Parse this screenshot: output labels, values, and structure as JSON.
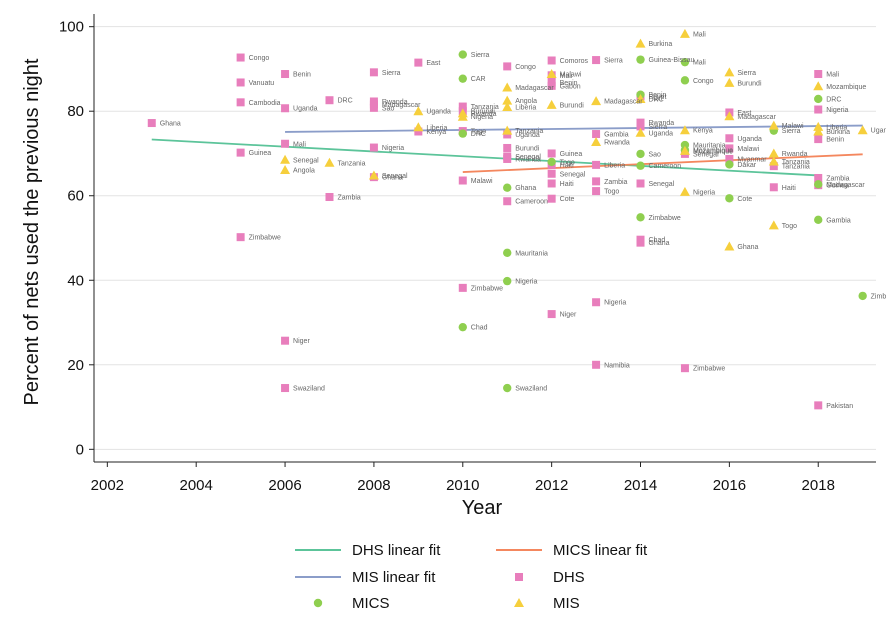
{
  "chart_data": {
    "type": "scatter",
    "title": "",
    "xlabel": "Year",
    "ylabel": "Percent of nets used the previous night",
    "xlim": [
      2001.7,
      2019.3
    ],
    "ylim": [
      -3,
      103
    ],
    "x_ticks": [
      2002,
      2004,
      2006,
      2008,
      2010,
      2012,
      2014,
      2016,
      2018
    ],
    "y_ticks": [
      0,
      20,
      40,
      60,
      80,
      100
    ],
    "grid": true,
    "legend_position": "bottom",
    "colors": {
      "DHS": "#e87ebc",
      "MICS": "#8fcf4f",
      "MIS": "#f6cf3c",
      "DHS_fit": "#5cc49a",
      "MIS_fit": "#8b9dc9",
      "MICS_fit": "#f4875e"
    },
    "legend": [
      {
        "key": "DHS_fit",
        "label": "DHS linear fit",
        "kind": "line"
      },
      {
        "key": "MICS_fit",
        "label": "MICS linear fit",
        "kind": "line"
      },
      {
        "key": "MIS_fit",
        "label": "MIS linear fit",
        "kind": "line"
      },
      {
        "key": "DHS",
        "label": "DHS",
        "kind": "square"
      },
      {
        "key": "MICS",
        "label": "MICS",
        "kind": "circle"
      },
      {
        "key": "MIS",
        "label": "MIS",
        "kind": "triangle"
      }
    ],
    "fit_lines": [
      {
        "series": "DHS",
        "x": [
          2003,
          2018
        ],
        "y": [
          73.3,
          64.8
        ]
      },
      {
        "series": "MIS",
        "x": [
          2006,
          2019
        ],
        "y": [
          75.1,
          76.6
        ]
      },
      {
        "series": "MICS",
        "x": [
          2010,
          2019
        ],
        "y": [
          65.6,
          69.8
        ]
      }
    ],
    "series": [
      {
        "name": "DHS",
        "points": [
          {
            "x": 2003,
            "y": 77.2,
            "label": "Ghana"
          },
          {
            "x": 2005,
            "y": 92.7,
            "label": "Congo"
          },
          {
            "x": 2005,
            "y": 86.8,
            "label": "Vanuatu"
          },
          {
            "x": 2005,
            "y": 82.1,
            "label": "Cambodia"
          },
          {
            "x": 2005,
            "y": 70.2,
            "label": "Guinea"
          },
          {
            "x": 2005,
            "y": 50.2,
            "label": "Zimbabwe"
          },
          {
            "x": 2006,
            "y": 88.8,
            "label": "Benin"
          },
          {
            "x": 2006,
            "y": 80.7,
            "label": "Uganda"
          },
          {
            "x": 2006,
            "y": 72.3,
            "label": "Mali"
          },
          {
            "x": 2006,
            "y": 25.7,
            "label": "Niger"
          },
          {
            "x": 2006,
            "y": 14.5,
            "label": "Swaziland"
          },
          {
            "x": 2007,
            "y": 82.6,
            "label": "DRC"
          },
          {
            "x": 2007,
            "y": 59.7,
            "label": "Zambia"
          },
          {
            "x": 2008,
            "y": 89.2,
            "label": "Sierra"
          },
          {
            "x": 2008,
            "y": 82.3,
            "label": "Rwanda"
          },
          {
            "x": 2008,
            "y": 81.6,
            "label": "Madagascar"
          },
          {
            "x": 2008,
            "y": 80.8,
            "label": "Sao"
          },
          {
            "x": 2008,
            "y": 71.4,
            "label": "Nigeria"
          },
          {
            "x": 2008,
            "y": 64.4,
            "label": "Ghana"
          },
          {
            "x": 2009,
            "y": 91.5,
            "label": "East"
          },
          {
            "x": 2009,
            "y": 75.2,
            "label": "Kenya"
          },
          {
            "x": 2010,
            "y": 81.1,
            "label": "Tanzania"
          },
          {
            "x": 2010,
            "y": 80.0,
            "label": "Burundi"
          },
          {
            "x": 2010,
            "y": 75.3,
            "label": "Togo"
          },
          {
            "x": 2010,
            "y": 63.6,
            "label": "Malawi"
          },
          {
            "x": 2010,
            "y": 38.2,
            "label": "Zimbabwe"
          },
          {
            "x": 2011,
            "y": 90.6,
            "label": "Congo"
          },
          {
            "x": 2011,
            "y": 74.5,
            "label": "Uganda"
          },
          {
            "x": 2011,
            "y": 71.3,
            "label": "Burundi"
          },
          {
            "x": 2011,
            "y": 69.3,
            "label": "Senegal"
          },
          {
            "x": 2011,
            "y": 68.7,
            "label": "Rwanda"
          },
          {
            "x": 2011,
            "y": 58.7,
            "label": "Cameroon"
          },
          {
            "x": 2012,
            "y": 92.0,
            "label": "Comoros"
          },
          {
            "x": 2012,
            "y": 88.5,
            "label": "Mali"
          },
          {
            "x": 2012,
            "y": 86.8,
            "label": "Benin"
          },
          {
            "x": 2012,
            "y": 86.0,
            "label": "Gabon"
          },
          {
            "x": 2012,
            "y": 70.0,
            "label": "Guinea"
          },
          {
            "x": 2012,
            "y": 67.3,
            "label": "Haiti"
          },
          {
            "x": 2012,
            "y": 65.2,
            "label": "Senegal"
          },
          {
            "x": 2012,
            "y": 62.9,
            "label": "Haiti"
          },
          {
            "x": 2012,
            "y": 59.3,
            "label": "Cote"
          },
          {
            "x": 2012,
            "y": 32.0,
            "label": "Niger"
          },
          {
            "x": 2013,
            "y": 92.1,
            "label": "Sierra"
          },
          {
            "x": 2013,
            "y": 74.6,
            "label": "Gambia"
          },
          {
            "x": 2013,
            "y": 67.3,
            "label": "Liberia"
          },
          {
            "x": 2013,
            "y": 63.4,
            "label": "Zambia"
          },
          {
            "x": 2013,
            "y": 61.1,
            "label": "Togo"
          },
          {
            "x": 2013,
            "y": 34.8,
            "label": "Nigeria"
          },
          {
            "x": 2013,
            "y": 20.0,
            "label": "Namibia"
          },
          {
            "x": 2014,
            "y": 83.5,
            "label": "Egypt"
          },
          {
            "x": 2014,
            "y": 77.3,
            "label": "Rwanda"
          },
          {
            "x": 2014,
            "y": 76.4,
            "label": "Sierra"
          },
          {
            "x": 2014,
            "y": 62.9,
            "label": "Senegal"
          },
          {
            "x": 2014,
            "y": 49.6,
            "label": "Chad"
          },
          {
            "x": 2014,
            "y": 48.9,
            "label": "Ghana"
          },
          {
            "x": 2015,
            "y": 69.9,
            "label": "Senegal"
          },
          {
            "x": 2015,
            "y": 19.2,
            "label": "Zimbabwe"
          },
          {
            "x": 2016,
            "y": 79.7,
            "label": "East"
          },
          {
            "x": 2016,
            "y": 73.6,
            "label": "Uganda"
          },
          {
            "x": 2016,
            "y": 71.2,
            "label": "Malawi"
          },
          {
            "x": 2016,
            "y": 68.7,
            "label": "Myanmar"
          },
          {
            "x": 2017,
            "y": 67.0,
            "label": "Tanzania"
          },
          {
            "x": 2017,
            "y": 62.0,
            "label": "Haiti"
          },
          {
            "x": 2018,
            "y": 88.8,
            "label": "Mali"
          },
          {
            "x": 2018,
            "y": 80.4,
            "label": "Nigeria"
          },
          {
            "x": 2018,
            "y": 73.4,
            "label": "Benin"
          },
          {
            "x": 2018,
            "y": 64.2,
            "label": "Zambia"
          },
          {
            "x": 2018,
            "y": 62.5,
            "label": "Guinea"
          },
          {
            "x": 2018,
            "y": 10.4,
            "label": "Pakistan"
          }
        ]
      },
      {
        "name": "MICS",
        "points": [
          {
            "x": 2010,
            "y": 93.4,
            "label": "Sierra"
          },
          {
            "x": 2010,
            "y": 87.7,
            "label": "CAR"
          },
          {
            "x": 2010,
            "y": 74.7,
            "label": "DRC"
          },
          {
            "x": 2010,
            "y": 28.9,
            "label": "Chad"
          },
          {
            "x": 2011,
            "y": 61.9,
            "label": "Ghana"
          },
          {
            "x": 2011,
            "y": 46.5,
            "label": "Mauritania"
          },
          {
            "x": 2011,
            "y": 39.8,
            "label": "Nigeria"
          },
          {
            "x": 2011,
            "y": 14.5,
            "label": "Swaziland"
          },
          {
            "x": 2012,
            "y": 68.0,
            "label": "Togo"
          },
          {
            "x": 2014,
            "y": 92.2,
            "label": "Guinea-Bissau"
          },
          {
            "x": 2014,
            "y": 83.9,
            "label": "Benin"
          },
          {
            "x": 2014,
            "y": 69.9,
            "label": "Sao"
          },
          {
            "x": 2014,
            "y": 67.1,
            "label": "Cameroon"
          },
          {
            "x": 2014,
            "y": 54.9,
            "label": "Zimbabwe"
          },
          {
            "x": 2015,
            "y": 91.6,
            "label": "Mali"
          },
          {
            "x": 2015,
            "y": 87.3,
            "label": "Congo"
          },
          {
            "x": 2015,
            "y": 72.0,
            "label": "Mauritania"
          },
          {
            "x": 2015,
            "y": 70.8,
            "label": "Mozambique"
          },
          {
            "x": 2016,
            "y": 67.4,
            "label": "Dakar"
          },
          {
            "x": 2016,
            "y": 59.4,
            "label": "Cote"
          },
          {
            "x": 2017,
            "y": 75.4,
            "label": "Sierra"
          },
          {
            "x": 2018,
            "y": 82.9,
            "label": "DRC"
          },
          {
            "x": 2018,
            "y": 62.7,
            "label": "Madagascar"
          },
          {
            "x": 2018,
            "y": 54.3,
            "label": "Gambia"
          },
          {
            "x": 2019,
            "y": 36.3,
            "label": "Zimbabwe"
          }
        ]
      },
      {
        "name": "MIS",
        "points": [
          {
            "x": 2006,
            "y": 68.5,
            "label": "Senegal"
          },
          {
            "x": 2006,
            "y": 66.1,
            "label": "Angola"
          },
          {
            "x": 2007,
            "y": 67.8,
            "label": "Tanzania"
          },
          {
            "x": 2008,
            "y": 64.8,
            "label": "Senegal"
          },
          {
            "x": 2009,
            "y": 80.0,
            "label": "Uganda"
          },
          {
            "x": 2009,
            "y": 76.2,
            "label": "Liberia"
          },
          {
            "x": 2010,
            "y": 79.5,
            "label": "Rwanda"
          },
          {
            "x": 2010,
            "y": 78.7,
            "label": "Nigeria"
          },
          {
            "x": 2011,
            "y": 85.6,
            "label": "Madagascar"
          },
          {
            "x": 2011,
            "y": 82.5,
            "label": "Angola"
          },
          {
            "x": 2011,
            "y": 81.0,
            "label": "Liberia"
          },
          {
            "x": 2011,
            "y": 75.4,
            "label": "Tanzania"
          },
          {
            "x": 2012,
            "y": 88.8,
            "label": "Malawi"
          },
          {
            "x": 2012,
            "y": 81.5,
            "label": "Burundi"
          },
          {
            "x": 2013,
            "y": 82.4,
            "label": "Madagascar"
          },
          {
            "x": 2013,
            "y": 72.7,
            "label": "Rwanda"
          },
          {
            "x": 2014,
            "y": 96.0,
            "label": "Burkina"
          },
          {
            "x": 2014,
            "y": 82.9,
            "label": "DRC"
          },
          {
            "x": 2014,
            "y": 74.9,
            "label": "Uganda"
          },
          {
            "x": 2015,
            "y": 98.3,
            "label": "Mali"
          },
          {
            "x": 2015,
            "y": 75.5,
            "label": "Kenya"
          },
          {
            "x": 2015,
            "y": 70.6,
            "label": "Mozambique"
          },
          {
            "x": 2015,
            "y": 60.9,
            "label": "Nigeria"
          },
          {
            "x": 2016,
            "y": 89.2,
            "label": "Sierra"
          },
          {
            "x": 2016,
            "y": 86.7,
            "label": "Burundi"
          },
          {
            "x": 2016,
            "y": 78.8,
            "label": "Madagascar"
          },
          {
            "x": 2016,
            "y": 48.0,
            "label": "Ghana"
          },
          {
            "x": 2017,
            "y": 76.6,
            "label": "Malawi"
          },
          {
            "x": 2017,
            "y": 70.0,
            "label": "Rwanda"
          },
          {
            "x": 2017,
            "y": 68.1,
            "label": "Tanzania"
          },
          {
            "x": 2017,
            "y": 53.0,
            "label": "Togo"
          },
          {
            "x": 2018,
            "y": 85.9,
            "label": "Mozambique"
          },
          {
            "x": 2018,
            "y": 76.3,
            "label": "Liberia"
          },
          {
            "x": 2018,
            "y": 75.2,
            "label": "Burkina"
          },
          {
            "x": 2019,
            "y": 75.5,
            "label": "Uganda"
          }
        ]
      }
    ]
  }
}
